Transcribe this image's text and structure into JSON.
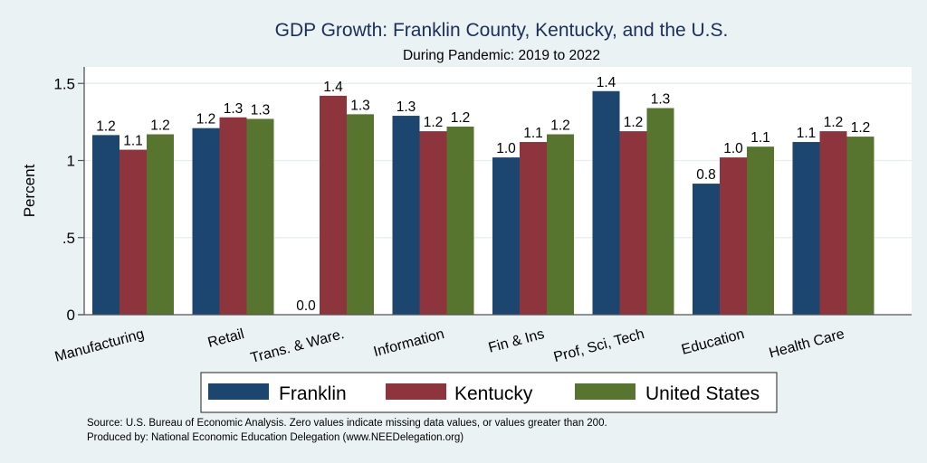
{
  "chart_data": {
    "type": "bar",
    "title": "GDP Growth: Franklin County, Kentucky, and the U.S.",
    "subtitle": "During Pandemic: 2019 to 2022",
    "xlabel": "",
    "ylabel": "Percent",
    "ylim": [
      0,
      1.6
    ],
    "yticks": [
      {
        "value": 0,
        "label": "0"
      },
      {
        "value": 0.5,
        "label": ".5"
      },
      {
        "value": 1,
        "label": "1"
      },
      {
        "value": 1.5,
        "label": "1.5"
      }
    ],
    "grid": true,
    "legend_position": "bottom",
    "categories": [
      "Manufacturing",
      "Retail",
      "Trans. & Ware.",
      "Information",
      "Fin & Ins",
      "Prof, Sci, Tech",
      "Education",
      "Health Care"
    ],
    "series": [
      {
        "name": "Franklin",
        "color": "#1c466f",
        "values": [
          1.165,
          1.21,
          0.0,
          1.29,
          1.02,
          1.45,
          0.85,
          1.12
        ],
        "labels": [
          "1.2",
          "1.2",
          "0.0",
          "1.3",
          "1.0",
          "1.4",
          "0.8",
          "1.1"
        ]
      },
      {
        "name": "Kentucky",
        "color": "#8d343d",
        "values": [
          1.07,
          1.28,
          1.42,
          1.19,
          1.12,
          1.19,
          1.02,
          1.19
        ],
        "labels": [
          "1.1",
          "1.3",
          "1.4",
          "1.2",
          "1.1",
          "1.2",
          "1.0",
          "1.2"
        ]
      },
      {
        "name": "United States",
        "color": "#587530",
        "values": [
          1.17,
          1.27,
          1.3,
          1.22,
          1.17,
          1.34,
          1.09,
          1.155
        ],
        "labels": [
          "1.2",
          "1.3",
          "1.3",
          "1.2",
          "1.2",
          "1.3",
          "1.1",
          "1.2"
        ]
      }
    ]
  },
  "notes": {
    "source": "Source: U.S. Bureau of Economic Analysis. Zero values indicate missing data values, or values greater than 200.",
    "produced_by": "Produced by: National Economic Education Delegation (www.NEEDelegation.org)"
  }
}
